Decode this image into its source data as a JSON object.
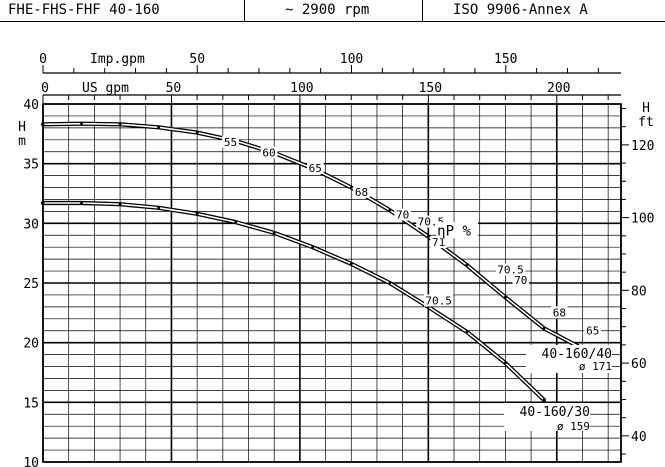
{
  "header": {
    "model": "FHE-FHS-FHF 40-160",
    "speed": "~ 2900 rpm",
    "standard": "ISO 9906-Annex A"
  },
  "chart_data": {
    "type": "line",
    "title": "",
    "xlabel": "US gpm",
    "xlabel_top": "Imp.gpm",
    "ylabel": "H m",
    "ylabel_right": "H ft",
    "xlim": [
      0,
      225
    ],
    "ylim": [
      10,
      40
    ],
    "x_ticks": [
      0,
      50,
      100,
      150,
      200
    ],
    "x_top_ticks": [
      0,
      50,
      100,
      150
    ],
    "y_ticks": [
      10,
      15,
      20,
      25,
      30,
      35,
      40
    ],
    "y_right_ticks": [
      40,
      60,
      80,
      100,
      120
    ],
    "grid": true,
    "efficiency_label": "ηP %",
    "series": [
      {
        "name": "40-160/40",
        "diameter_label": "ø 171",
        "x": [
          0,
          15,
          30,
          45,
          60,
          75,
          90,
          105,
          120,
          135,
          150,
          165,
          180,
          195,
          210
        ],
        "y": [
          38.3,
          38.35,
          38.3,
          38.05,
          37.6,
          36.9,
          35.9,
          34.6,
          33.0,
          31.1,
          28.9,
          26.5,
          23.8,
          21.2,
          19.5
        ]
      },
      {
        "name": "40-160/30",
        "diameter_label": "ø 159",
        "x": [
          0,
          15,
          30,
          45,
          60,
          75,
          90,
          105,
          120,
          135,
          150,
          165,
          180,
          195
        ],
        "y": [
          31.7,
          31.7,
          31.6,
          31.3,
          30.8,
          30.1,
          29.2,
          28.0,
          26.6,
          25.0,
          23.0,
          20.9,
          18.3,
          15.2
        ]
      }
    ],
    "efficiency_labels": [
      {
        "label": "55",
        "x": 73,
        "y": 36.5
      },
      {
        "label": "60",
        "x": 88,
        "y": 35.6
      },
      {
        "label": "65",
        "x": 106,
        "y": 34.3
      },
      {
        "label": "68",
        "x": 124,
        "y": 32.3
      },
      {
        "label": "70",
        "x": 140,
        "y": 30.4
      },
      {
        "label": "70.5",
        "x": 151,
        "y": 29.8
      },
      {
        "label": "71",
        "x": 154,
        "y": 28.1
      },
      {
        "label": "70.5",
        "x": 182,
        "y": 25.8
      },
      {
        "label": "70",
        "x": 186,
        "y": 24.9
      },
      {
        "label": "68",
        "x": 201,
        "y": 22.2
      },
      {
        "label": "65",
        "x": 214,
        "y": 20.7
      },
      {
        "label": "70.5",
        "x": 154,
        "y": 23.2
      }
    ]
  }
}
